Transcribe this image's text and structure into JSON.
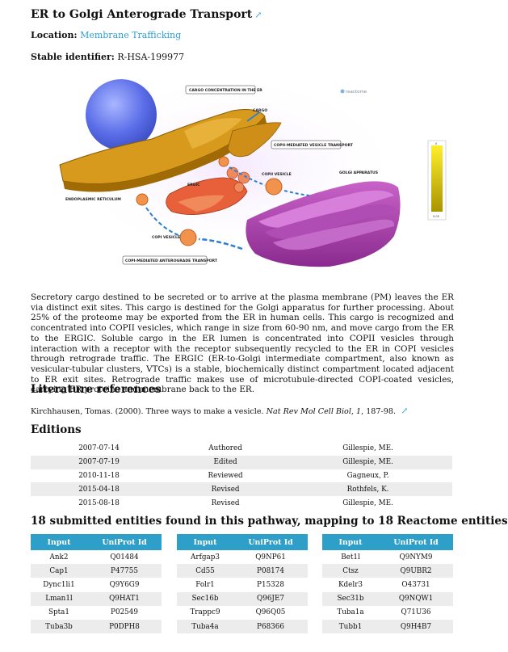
{
  "title": "ER to Golgi Anterograde Transport",
  "location": {
    "label": "Location:",
    "value": "Membrane Trafficking"
  },
  "stable_id": {
    "label": "Stable identifier:",
    "value": "R-HSA-199977"
  },
  "diagram": {
    "brand": "reactome",
    "labels": {
      "cargo_concentration": "CARGO CONCENTRATION IN THE ER",
      "cargo": "CARGO",
      "copii_transport": "COPII-MEDIATED VESICLE TRANSPORT",
      "copii_vesicle": "COPII VESICLE",
      "golgi": "GOLGI APPARATUS",
      "ergic": "ERGIC",
      "er": "ENDOPLASMIC RETICULUM",
      "copi_vesicle": "COPI VESICLE",
      "copi_transport": "COPI-MEDIATED ANTEROGRADE TRANSPORT"
    },
    "scale": {
      "max": "0",
      "min": "0.05"
    }
  },
  "description": "Secretory cargo destined to be secreted or to arrive at the plasma membrane (PM) leaves the ER via distinct exit sites. This cargo is destined for the Golgi apparatus for further processing. About 25% of the proteome may be exported from the ER in human cells. This cargo is recognized and concentrated into COPII vesicles, which range in size from 60-90 nm, and move cargo from the ER to the ERGIC. Soluble cargo in the ER lumen is concentrated into COPII vesicles through interaction with a receptor with the receptor subsequently recycled to the ER in COPI vesicles through retrograde traffic. The ERGIC (ER-to-Golgi intermediate compartment, also known as vesicular-tubular clusters, VTCs) is a stable, biochemically distinct compartment located adjacent to ER exit sites. Retrograde traffic makes use of microtubule-directed COPI-coated vesicles, carrying ER proteins and membrane back to the ER.",
  "literature": {
    "heading": "Literature references",
    "ref": {
      "authors": "Kirchhausen, Tomas. (2000). Three ways to make a vesicle.",
      "journal": "Nat Rev Mol Cell Biol, 1",
      "pages": ", 187-98."
    }
  },
  "editions": {
    "heading": "Editions",
    "rows": [
      {
        "date": "2007-07-14",
        "action": "Authored",
        "person": "Gillespie, ME."
      },
      {
        "date": "2007-07-19",
        "action": "Edited",
        "person": "Gillespie, ME."
      },
      {
        "date": "2010-11-18",
        "action": "Reviewed",
        "person": "Gagneux, P."
      },
      {
        "date": "2015-04-18",
        "action": "Revised",
        "person": "Rothfels, K."
      },
      {
        "date": "2015-08-18",
        "action": "Revised",
        "person": "Gillespie, ME."
      }
    ]
  },
  "entities": {
    "heading": "18 submitted entities found in this pathway, mapping to 18 Reactome entities",
    "col_input": "Input",
    "col_uniprot": "UniProt Id",
    "tables": [
      [
        [
          "Ank2",
          "Q01484"
        ],
        [
          "Cap1",
          "P47755"
        ],
        [
          "Dync1li1",
          "Q9Y6G9"
        ],
        [
          "Lman1l",
          "Q9HAT1"
        ],
        [
          "Spta1",
          "P02549"
        ],
        [
          "Tuba3b",
          "P0DPH8"
        ]
      ],
      [
        [
          "Arfgap3",
          "Q9NP61"
        ],
        [
          "Cd55",
          "P08174"
        ],
        [
          "Folr1",
          "P15328"
        ],
        [
          "Sec16b",
          "Q96JE7"
        ],
        [
          "Trappc9",
          "Q96Q05"
        ],
        [
          "Tuba4a",
          "P68366"
        ]
      ],
      [
        [
          "Bet1l",
          "Q9NYM9"
        ],
        [
          "Ctsz",
          "Q9UBR2"
        ],
        [
          "Kdelr3",
          "O43731"
        ],
        [
          "Sec31b",
          "Q9NQW1"
        ],
        [
          "Tuba1a",
          "Q71U36"
        ],
        [
          "Tubb1",
          "Q9H4B7"
        ]
      ]
    ]
  }
}
